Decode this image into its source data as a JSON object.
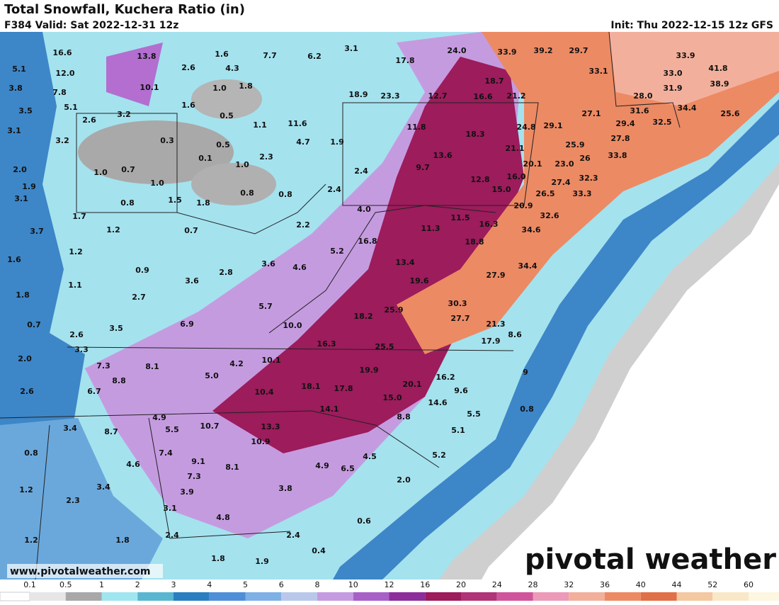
{
  "header": {
    "title": "Total Snowfall, Kuchera Ratio (in)",
    "valid": "F384 Valid: Sat 2022-12-31 12z",
    "init": "Init: Thu 2022-12-15 12z GFS"
  },
  "footer": {
    "url": "www.pivotalweather.com",
    "logo": "pivotal weather"
  },
  "colorbar": {
    "ticks": [
      "0.1",
      "0.5",
      "1",
      "2",
      "3",
      "4",
      "5",
      "6",
      "8",
      "10",
      "12",
      "16",
      "20",
      "24",
      "28",
      "32",
      "36",
      "40",
      "44",
      "52",
      "60"
    ],
    "colors": [
      "#e6e6e6",
      "#a8a8a8",
      "#a0e6f0",
      "#58b6d0",
      "#2a7fc0",
      "#4f8fd8",
      "#7fb0e6",
      "#b9c8ea",
      "#c59be0",
      "#a860c8",
      "#8c2f9a",
      "#9c1c5c",
      "#b03477",
      "#d0549b",
      "#ec9ab8",
      "#f2b09c",
      "#ec8a64",
      "#e07048",
      "#f4c8a0",
      "#f8e8c8"
    ]
  },
  "map": {
    "labels": [
      "16.6",
      "13.8",
      "1.6",
      "7.7",
      "6.2",
      "3.1",
      "24.0",
      "33.9",
      "39.2",
      "29.7",
      "33.9",
      "5.1",
      "12.0",
      "2.6",
      "4.3",
      "17.8",
      "33.1",
      "33.0",
      "41.8",
      "3.8",
      "7.8",
      "10.1",
      "1.0",
      "1.8",
      "18.7",
      "31.9",
      "38.9",
      "18.9",
      "23.3",
      "12.7",
      "16.6",
      "21.2",
      "28.0",
      "3.5",
      "5.1",
      "3.2",
      "1.6",
      "0.5",
      "27.1",
      "31.6",
      "34.4",
      "25.6",
      "2.6",
      "1.1",
      "11.6",
      "11.8",
      "18.3",
      "24.8",
      "29.1",
      "29.4",
      "32.5",
      "3.1",
      "3.2",
      "0.3",
      "0.5",
      "4.7",
      "1.9",
      "21.1",
      "25.9",
      "27.8",
      "33.8",
      "0.1",
      "2.3",
      "13.6",
      "20.1",
      "23.0",
      "26",
      "2.0",
      "1.0",
      "0.7",
      "1.0",
      "2.4",
      "9.7",
      "12.8",
      "16.0",
      "1.9",
      "1.0",
      "0.8",
      "0.8",
      "2.4",
      "15.0",
      "27.4",
      "32.3",
      "3.1",
      "0.8",
      "1.5",
      "1.8",
      "26.5",
      "33.3",
      "4.0",
      "20.9",
      "1.7",
      "11.5",
      "32.6",
      "3.7",
      "1.2",
      "0.7",
      "2.2",
      "11.3",
      "16.3",
      "34.6",
      "16.8",
      "18.8",
      "1.2",
      "5.2",
      "1.6",
      "3.6",
      "4.6",
      "13.4",
      "34.4",
      "0.9",
      "2.8",
      "27.9",
      "1.1",
      "3.6",
      "19.6",
      "1.8",
      "2.7",
      "30.3",
      "5.7",
      "25.9",
      "6.9",
      "18.2",
      "27.7",
      "21.3",
      "0.7",
      "3.5",
      "10.0",
      "8.6",
      "2.6",
      "16.3",
      "17.9",
      "3.3",
      "25.5",
      "2.0",
      "7.3",
      "8.1",
      "4.2",
      "10.1",
      "19.9",
      "5.0",
      "8.8",
      "16.2",
      "9",
      "2.6",
      "6.7",
      "10.4",
      "18.1",
      "17.8",
      "20.1",
      "9.6",
      "15.0",
      "14.6",
      "0.8",
      "4.9",
      "14.1",
      "5.5",
      "3.4",
      "8.7",
      "5.5",
      "10.7",
      "13.3",
      "8.8",
      "5.1",
      "7.4",
      "10.9",
      "0.8",
      "5.2",
      "9.1",
      "4.6",
      "8.1",
      "4.9",
      "6.5",
      "4.5",
      "7.3",
      "1.2",
      "3.4",
      "3.9",
      "3.8",
      "2.0",
      "2.3",
      "3.1",
      "4.8",
      "0.6",
      "2.4",
      "2.4",
      "1.2",
      "1.8",
      "0.4",
      "1.8",
      "1.9"
    ]
  }
}
